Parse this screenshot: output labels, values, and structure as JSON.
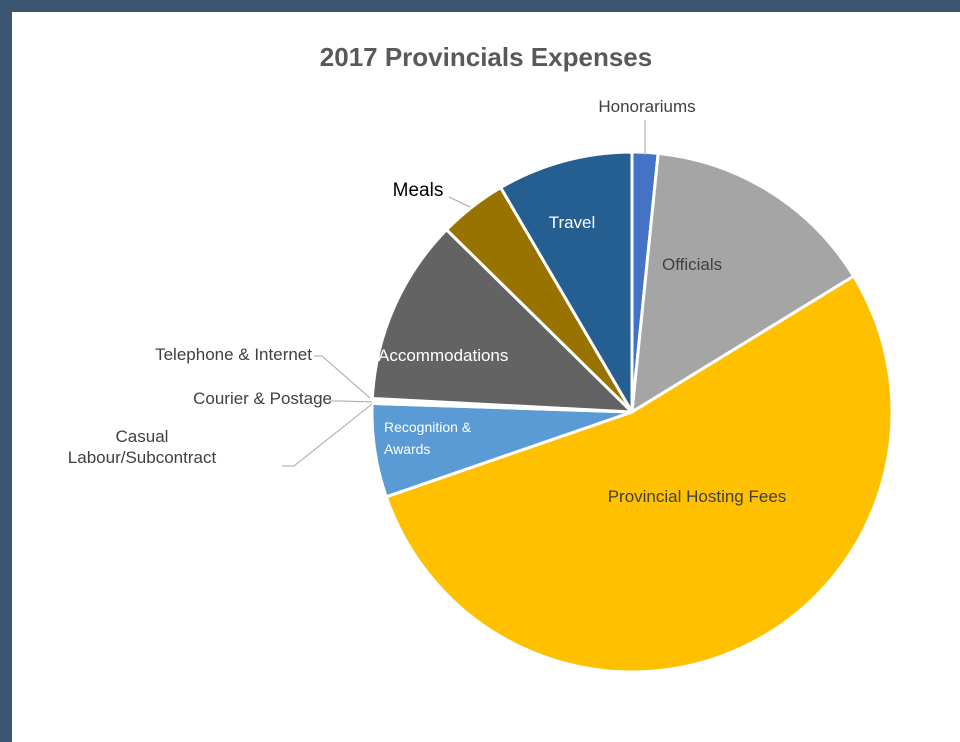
{
  "chart_data": {
    "type": "pie",
    "title": "2017 Provincials Expenses",
    "categories": [
      "Honorariums",
      "Officials",
      "Provincial Hosting Fees",
      "Recognition & Awards",
      "Casual Labour/Subcontract",
      "Courier & Postage",
      "Telephone & Internet",
      "Accommodations",
      "Meals",
      "Travel"
    ],
    "values": [
      1.6,
      14.6,
      53.3,
      5.8,
      0.1,
      0.1,
      0.1,
      11.5,
      4.2,
      8.4
    ],
    "colors": [
      "#4472c4",
      "#a5a5a5",
      "#ffc000",
      "#5b9bd5",
      "#264478",
      "#9e480e",
      "#636363",
      "#636363",
      "#997300",
      "#255e91"
    ]
  }
}
